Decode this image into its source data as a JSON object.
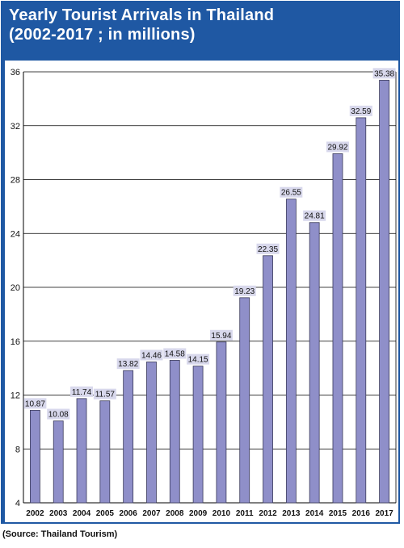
{
  "chart_data": {
    "type": "bar",
    "title": "Yearly Tourist Arrivals in Thailand",
    "subtitle": "(2002-2017 ; in millions)",
    "categories": [
      "2002",
      "2003",
      "2004",
      "2005",
      "2006",
      "2007",
      "2008",
      "2009",
      "2010",
      "2011",
      "2012",
      "2013",
      "2014",
      "2015",
      "2016",
      "2017"
    ],
    "values": [
      10.87,
      10.08,
      11.74,
      11.57,
      13.82,
      14.46,
      14.58,
      14.15,
      15.94,
      19.23,
      22.35,
      26.55,
      24.81,
      29.92,
      32.59,
      35.38
    ],
    "data_labels": [
      "10.87",
      "10.08",
      "11.74",
      "11.57",
      "13.82",
      "14.46",
      "14.58",
      "14.15",
      "15.94",
      "19.23",
      "22.35",
      "26.55",
      "24.81",
      "29.92",
      "32.59",
      "35.38"
    ],
    "ylim": [
      4,
      36
    ],
    "yticks": [
      4,
      8,
      12,
      16,
      20,
      24,
      28,
      32,
      36
    ],
    "grid": true,
    "xlabel": "",
    "ylabel": "",
    "colors": {
      "frame": "#1f58a3",
      "bar_fill": "#8f8fc9",
      "bar_stroke": "#3a3a5a",
      "label_bg": "#d8d8ec",
      "grid": "#000000"
    }
  },
  "source": "(Source: Thailand Tourism)"
}
